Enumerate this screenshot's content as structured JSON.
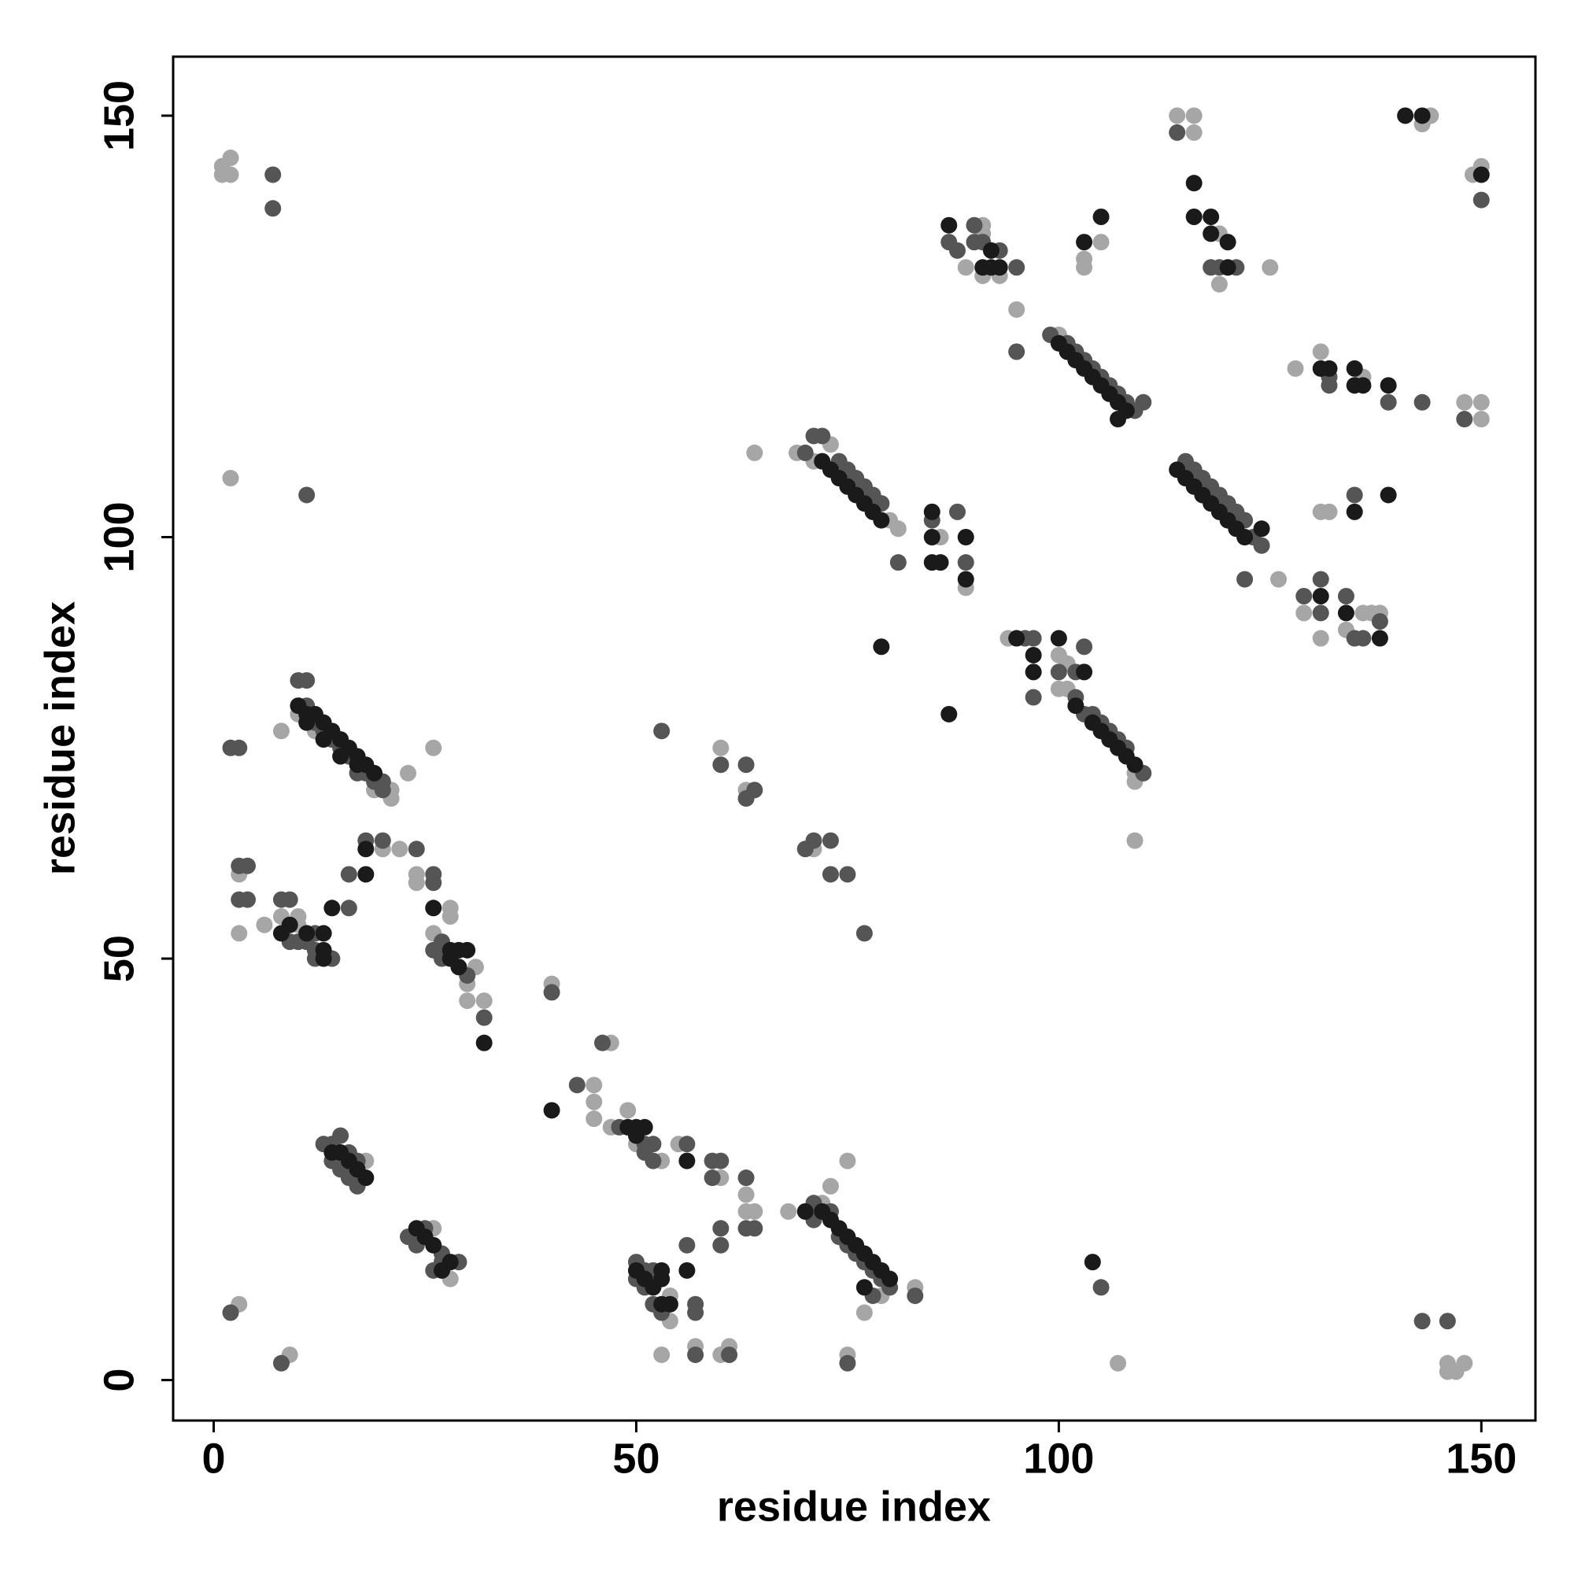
{
  "chart_data": {
    "type": "scatter",
    "x_label": "residue index",
    "y_label": "residue index",
    "xlim": [
      -4.8,
      156.4
    ],
    "ylim": [
      -4.8,
      157
    ],
    "xticks": [
      0,
      50,
      100,
      150
    ],
    "yticks": [
      0,
      50,
      100,
      150
    ],
    "grid": false,
    "series": [
      {
        "color": "#a6a6a6",
        "x": [
          1,
          2,
          1,
          2,
          2,
          10,
          21,
          21,
          23,
          8,
          12,
          19,
          26,
          20,
          22,
          24,
          24,
          3,
          3,
          6,
          8,
          10,
          10,
          26,
          30,
          28,
          28,
          31,
          30,
          32,
          40,
          47,
          45,
          45,
          45,
          47,
          49,
          50,
          53,
          55,
          60,
          63,
          63,
          64,
          53,
          57,
          60,
          61,
          52,
          54,
          54,
          18,
          26,
          28,
          3,
          9,
          68,
          72,
          73,
          75,
          79,
          83,
          77,
          75,
          107,
          146,
          147,
          148,
          146,
          60,
          63,
          64,
          69,
          73,
          71,
          80,
          81,
          86,
          89,
          71,
          94,
          100,
          101,
          100,
          101,
          109,
          109,
          109,
          89,
          91,
          91,
          91,
          93,
          95,
          103,
          103,
          105,
          100,
          114,
          116,
          116,
          119,
          119,
          125,
          126,
          128,
          131,
          136,
          143,
          144,
          149,
          150,
          148,
          150,
          150,
          131,
          132,
          129,
          134,
          136,
          137,
          138,
          131
        ],
        "values": [
          144,
          145,
          143,
          143,
          107,
          79,
          70,
          69,
          72,
          77,
          77,
          70,
          75,
          63,
          63,
          60,
          59,
          60,
          53,
          54,
          55,
          54,
          55,
          53,
          47,
          56,
          55,
          49,
          45,
          45,
          47,
          40,
          35,
          33,
          31,
          30,
          32,
          28,
          26,
          28,
          24,
          22,
          20,
          20,
          3,
          4,
          3,
          4,
          12,
          10,
          7,
          26,
          18,
          12,
          9,
          3,
          20,
          21,
          23,
          26,
          10,
          11,
          8,
          3,
          2,
          2,
          1,
          2,
          1,
          75,
          70,
          110,
          110,
          111,
          109,
          102,
          101,
          100,
          94,
          63,
          88,
          86,
          85,
          82,
          82,
          72,
          71,
          64,
          132,
          137,
          136,
          131,
          131,
          127,
          132,
          133,
          135,
          124,
          150,
          150,
          148,
          136,
          130,
          132,
          95,
          120,
          122,
          119,
          149,
          150,
          143,
          144,
          116,
          116,
          114,
          103,
          103,
          91,
          89,
          91,
          91,
          91,
          88
        ]
      },
      {
        "color": "#555555",
        "x": [
          10,
          11,
          11,
          12,
          14,
          16,
          18,
          20,
          19,
          20,
          13,
          15,
          17,
          2,
          3,
          7,
          7,
          11,
          18,
          20,
          24,
          16,
          16,
          26,
          26,
          3,
          4,
          3,
          4,
          8,
          9,
          9,
          10,
          12,
          12,
          12,
          14,
          11,
          27,
          26,
          27,
          30,
          32,
          40,
          46,
          43,
          48,
          51,
          52,
          51,
          52,
          56,
          59,
          60,
          59,
          63,
          63,
          64,
          60,
          60,
          56,
          57,
          61,
          50,
          51,
          52,
          50,
          51,
          52,
          53,
          57,
          57,
          13,
          14,
          15,
          16,
          17,
          17,
          16,
          14,
          15,
          23,
          25,
          24,
          27,
          29,
          26,
          27,
          2,
          8,
          71,
          71,
          73,
          74,
          75,
          76,
          77,
          78,
          79,
          80,
          78,
          83,
          75,
          105,
          143,
          146,
          53,
          60,
          63,
          63,
          64,
          71,
          72,
          70,
          74,
          75,
          76,
          77,
          78,
          79,
          81,
          85,
          88,
          89,
          70,
          73,
          71,
          73,
          75,
          77,
          96,
          97,
          97,
          100,
          102,
          103,
          102,
          103,
          110,
          104,
          105,
          106,
          107,
          108,
          87,
          88,
          90,
          90,
          91,
          93,
          95,
          95,
          99,
          101,
          102,
          103,
          104,
          105,
          106,
          107,
          108,
          109,
          110,
          114,
          118,
          119,
          121,
          115,
          116,
          117,
          118,
          119,
          120,
          121,
          122,
          123,
          124,
          122,
          132,
          132,
          139,
          143,
          150,
          148,
          135,
          129,
          131,
          131,
          134,
          135,
          136,
          138
        ],
        "values": [
          83,
          83,
          80,
          78,
          76,
          74,
          72,
          71,
          71,
          70,
          77,
          75,
          72,
          75,
          75,
          143,
          139,
          105,
          64,
          64,
          63,
          60,
          56,
          60,
          59,
          61,
          61,
          57,
          57,
          57,
          57,
          52,
          52,
          53,
          51,
          50,
          50,
          52,
          52,
          51,
          50,
          48,
          43,
          46,
          40,
          35,
          30,
          28,
          28,
          27,
          26,
          28,
          26,
          26,
          24,
          24,
          18,
          18,
          18,
          16,
          16,
          3,
          3,
          14,
          13,
          13,
          12,
          11,
          9,
          8,
          9,
          8,
          28,
          28,
          29,
          27,
          26,
          23,
          24,
          26,
          25,
          17,
          18,
          16,
          15,
          14,
          13,
          14,
          8,
          2,
          21,
          19,
          20,
          17,
          16,
          15,
          14,
          13,
          12,
          11,
          10,
          10,
          2,
          11,
          7,
          7,
          77,
          73,
          73,
          69,
          70,
          112,
          112,
          110,
          109,
          108,
          107,
          106,
          105,
          104,
          97,
          102,
          103,
          97,
          63,
          64,
          64,
          60,
          60,
          53,
          88,
          88,
          81,
          84,
          84,
          87,
          81,
          79,
          72,
          79,
          78,
          77,
          76,
          75,
          135,
          134,
          137,
          135,
          135,
          134,
          132,
          122,
          124,
          123,
          122,
          121,
          120,
          119,
          118,
          117,
          116,
          115,
          116,
          148,
          132,
          132,
          132,
          109,
          108,
          107,
          106,
          105,
          104,
          103,
          102,
          100,
          99,
          95,
          119,
          118,
          116,
          116,
          140,
          114,
          105,
          93,
          95,
          91,
          93,
          88,
          88,
          90
        ]
      },
      {
        "color": "#1a1a1a",
        "x": [
          10,
          11,
          12,
          13,
          14,
          15,
          16,
          17,
          18,
          19,
          11,
          13,
          15,
          17,
          18,
          18,
          14,
          26,
          9,
          8,
          11,
          13,
          13,
          13,
          28,
          29,
          30,
          28,
          29,
          32,
          40,
          49,
          50,
          51,
          50,
          56,
          56,
          50,
          53,
          51,
          53,
          52,
          53,
          54,
          14,
          15,
          16,
          17,
          18,
          24,
          25,
          26,
          28,
          27,
          70,
          72,
          73,
          74,
          75,
          76,
          77,
          78,
          79,
          80,
          77,
          104,
          72,
          73,
          74,
          75,
          76,
          77,
          78,
          79,
          85,
          85,
          85,
          86,
          89,
          89,
          79,
          87,
          95,
          97,
          97,
          100,
          103,
          102,
          104,
          105,
          106,
          107,
          108,
          109,
          87,
          92,
          91,
          92,
          93,
          103,
          105,
          100,
          101,
          102,
          103,
          104,
          105,
          106,
          107,
          108,
          107,
          116,
          116,
          118,
          118,
          120,
          120,
          114,
          115,
          116,
          117,
          118,
          119,
          120,
          121,
          122,
          124,
          131,
          132,
          135,
          135,
          136,
          139,
          141,
          143,
          150,
          135,
          139,
          131,
          134,
          138
        ],
        "values": [
          80,
          79,
          79,
          78,
          77,
          76,
          75,
          74,
          73,
          72,
          78,
          76,
          74,
          73,
          63,
          60,
          56,
          56,
          54,
          53,
          53,
          53,
          51,
          50,
          51,
          51,
          51,
          50,
          49,
          40,
          32,
          30,
          30,
          30,
          29,
          26,
          13,
          13,
          13,
          12,
          12,
          11,
          9,
          9,
          27,
          27,
          26,
          25,
          24,
          18,
          17,
          16,
          14,
          13,
          20,
          20,
          19,
          18,
          17,
          16,
          15,
          14,
          13,
          12,
          11,
          14,
          109,
          108,
          107,
          106,
          105,
          104,
          103,
          102,
          103,
          100,
          97,
          97,
          100,
          95,
          87,
          79,
          88,
          86,
          84,
          88,
          84,
          80,
          78,
          77,
          76,
          75,
          74,
          73,
          137,
          134,
          132,
          132,
          132,
          135,
          138,
          123,
          122,
          121,
          120,
          119,
          118,
          117,
          116,
          115,
          114,
          142,
          138,
          138,
          136,
          135,
          132,
          108,
          107,
          106,
          105,
          104,
          103,
          102,
          101,
          100,
          101,
          120,
          120,
          120,
          118,
          118,
          118,
          150,
          150,
          143,
          103,
          105,
          93,
          91,
          88
        ]
      }
    ]
  }
}
